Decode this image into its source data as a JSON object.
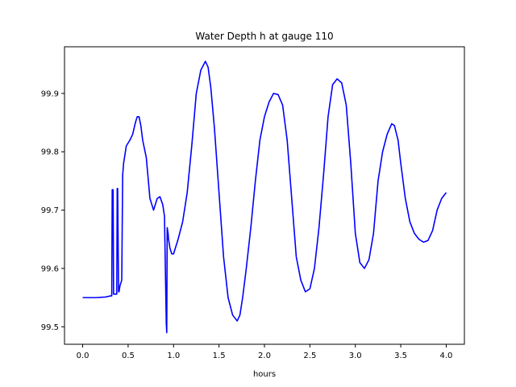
{
  "chart_data": {
    "type": "line",
    "title": "Water Depth h at gauge 110",
    "xlabel": "hours",
    "ylabel": "",
    "xlim": [
      -0.2,
      4.2
    ],
    "ylim": [
      99.47,
      99.98
    ],
    "x_ticks": [
      0.0,
      0.5,
      1.0,
      1.5,
      2.0,
      2.5,
      3.0,
      3.5,
      4.0
    ],
    "x_tick_labels": [
      "0.0",
      "0.5",
      "1.0",
      "1.5",
      "2.0",
      "2.5",
      "3.0",
      "3.5",
      "4.0"
    ],
    "y_ticks": [
      99.5,
      99.6,
      99.7,
      99.8,
      99.9
    ],
    "y_tick_labels": [
      "99.5",
      "99.6",
      "99.7",
      "99.8",
      "99.9"
    ],
    "grid": false,
    "legend": "none",
    "colors": {
      "line": "#0000ff",
      "axes": "#000000",
      "background": "#ffffff"
    },
    "series": [
      {
        "x": [
          0.0,
          0.15,
          0.25,
          0.31,
          0.32,
          0.325,
          0.335,
          0.34,
          0.345,
          0.375,
          0.38,
          0.385,
          0.395,
          0.4,
          0.41,
          0.43,
          0.44,
          0.45,
          0.48,
          0.52,
          0.55,
          0.58,
          0.6,
          0.62,
          0.64,
          0.66,
          0.7,
          0.74,
          0.78,
          0.8,
          0.82,
          0.85,
          0.88,
          0.9,
          0.92,
          0.925,
          0.93,
          0.94,
          0.945,
          0.96,
          0.98,
          1.0,
          1.05,
          1.1,
          1.15,
          1.2,
          1.25,
          1.3,
          1.35,
          1.38,
          1.41,
          1.45,
          1.5,
          1.55,
          1.6,
          1.65,
          1.7,
          1.73,
          1.76,
          1.8,
          1.85,
          1.9,
          1.95,
          2.0,
          2.05,
          2.1,
          2.15,
          2.2,
          2.25,
          2.3,
          2.35,
          2.4,
          2.45,
          2.5,
          2.55,
          2.6,
          2.65,
          2.7,
          2.75,
          2.8,
          2.85,
          2.9,
          2.95,
          3.0,
          3.05,
          3.1,
          3.15,
          3.2,
          3.25,
          3.3,
          3.35,
          3.4,
          3.43,
          3.47,
          3.5,
          3.55,
          3.6,
          3.65,
          3.7,
          3.75,
          3.8,
          3.85,
          3.9,
          3.95,
          4.0
        ],
        "y": [
          99.55,
          99.55,
          99.551,
          99.553,
          99.553,
          99.735,
          99.735,
          99.556,
          99.556,
          99.556,
          99.737,
          99.737,
          99.56,
          99.56,
          99.57,
          99.58,
          99.76,
          99.78,
          99.81,
          99.82,
          99.83,
          99.85,
          99.86,
          99.86,
          99.845,
          99.82,
          99.79,
          99.72,
          99.7,
          99.71,
          99.72,
          99.723,
          99.71,
          99.69,
          99.505,
          99.49,
          99.67,
          99.66,
          99.65,
          99.635,
          99.625,
          99.625,
          99.65,
          99.68,
          99.73,
          99.81,
          99.9,
          99.94,
          99.955,
          99.945,
          99.91,
          99.84,
          99.73,
          99.62,
          99.55,
          99.52,
          99.51,
          99.52,
          99.55,
          99.6,
          99.67,
          99.75,
          99.82,
          99.86,
          99.885,
          99.9,
          99.898,
          99.88,
          99.82,
          99.72,
          99.62,
          99.58,
          99.56,
          99.565,
          99.6,
          99.67,
          99.76,
          99.86,
          99.915,
          99.925,
          99.918,
          99.88,
          99.78,
          99.66,
          99.61,
          99.6,
          99.615,
          99.66,
          99.75,
          99.8,
          99.83,
          99.848,
          99.845,
          99.82,
          99.78,
          99.72,
          99.68,
          99.66,
          99.65,
          99.645,
          99.648,
          99.665,
          99.7,
          99.72,
          99.73
        ]
      }
    ]
  }
}
